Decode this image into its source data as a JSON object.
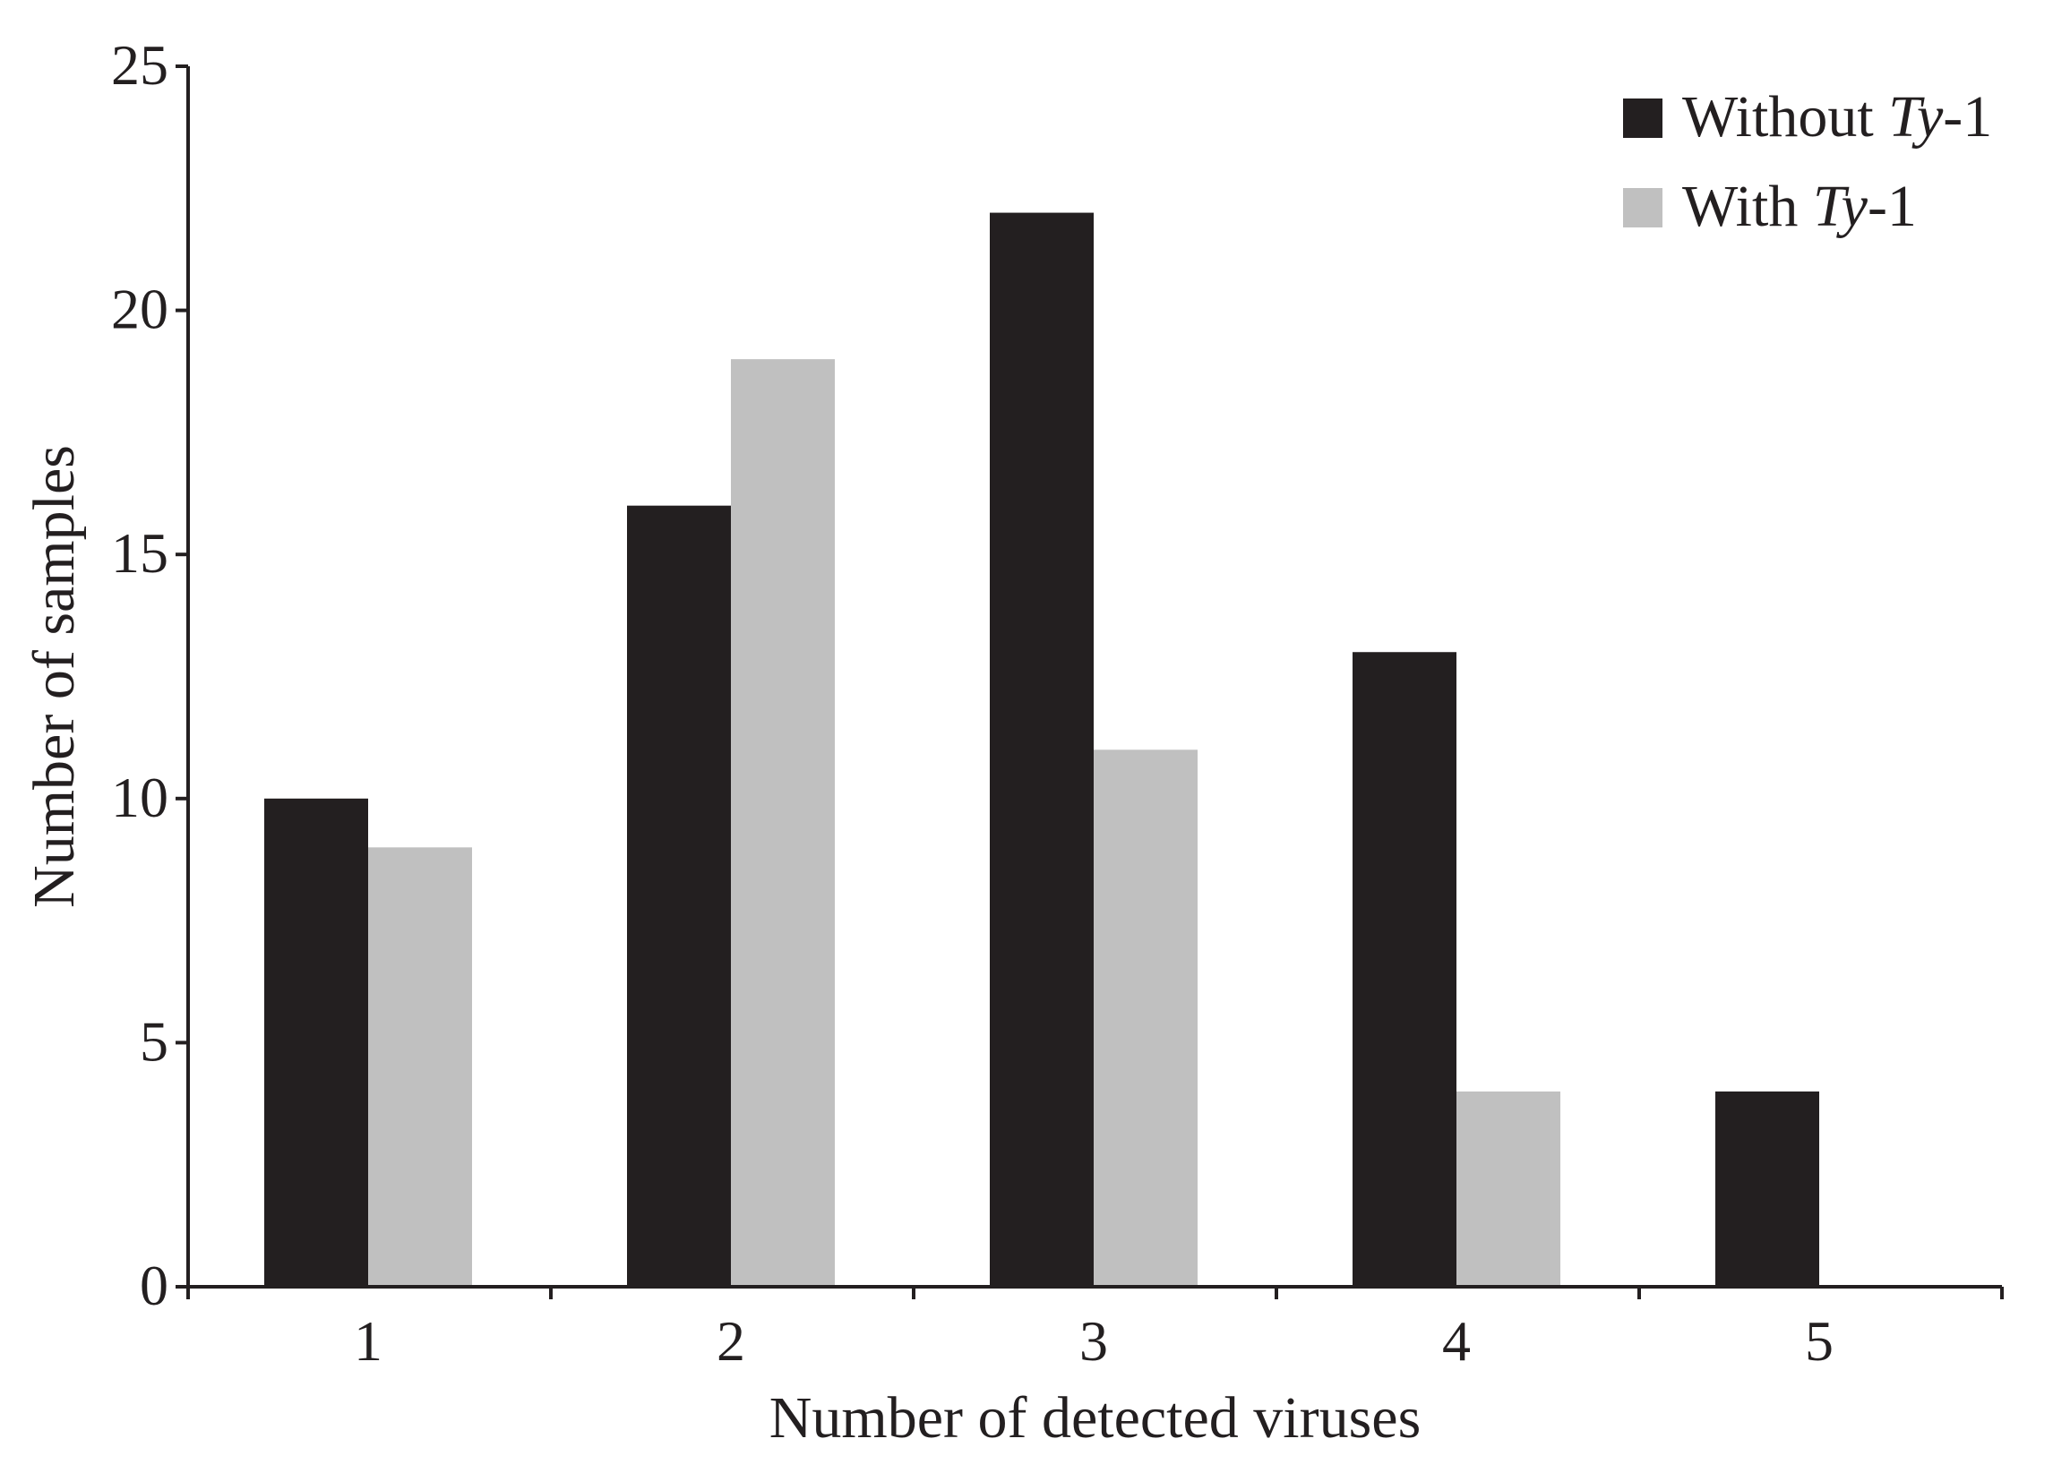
{
  "chart_data": {
    "type": "bar",
    "categories": [
      "1",
      "2",
      "3",
      "4",
      "5"
    ],
    "series": [
      {
        "name": "Without Ty-1",
        "name_prefix": "Without ",
        "name_italic": "Ty",
        "name_suffix": "-1",
        "color": "#231f20",
        "values": [
          10,
          16,
          22,
          13,
          4
        ]
      },
      {
        "name": "With Ty-1",
        "name_prefix": "With ",
        "name_italic": "Ty",
        "name_suffix": "-1",
        "color": "#c0c0c0",
        "values": [
          9,
          19,
          11,
          4,
          0
        ]
      }
    ],
    "title": "",
    "xlabel": "Number of detected viruses",
    "ylabel": "Number of samples",
    "ylim": [
      0,
      25
    ],
    "yticks": [
      0,
      5,
      10,
      15,
      20,
      25
    ],
    "grid": false,
    "legend": "top-right"
  }
}
